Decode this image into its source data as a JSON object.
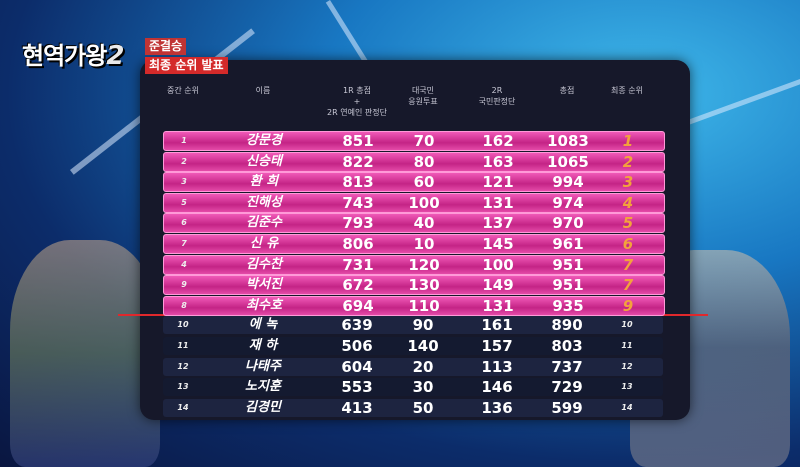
{
  "logo": {
    "title": "현역가왕",
    "number": "2"
  },
  "tags": [
    "준결승",
    "최종 순위 발표"
  ],
  "table": {
    "headers": [
      [
        "중간 순위"
      ],
      [
        "이름"
      ],
      [
        "1R 총점",
        "+",
        "2R 연예인 판정단"
      ],
      [
        "대국민",
        "응원투표"
      ],
      [
        "2R",
        "국민판정단"
      ],
      [
        "총점"
      ],
      [
        "최종 순위"
      ]
    ],
    "rows": [
      [
        1,
        "강문경",
        851,
        70,
        162,
        1083,
        1
      ],
      [
        2,
        "신승태",
        822,
        80,
        163,
        1065,
        2
      ],
      [
        3,
        "환 희",
        813,
        60,
        121,
        994,
        3
      ],
      [
        5,
        "진해성",
        743,
        100,
        131,
        974,
        4
      ],
      [
        6,
        "김준수",
        793,
        40,
        137,
        970,
        5
      ],
      [
        7,
        "신 유",
        806,
        10,
        145,
        961,
        6
      ],
      [
        4,
        "김수찬",
        731,
        120,
        100,
        951,
        7
      ],
      [
        9,
        "박서진",
        672,
        130,
        149,
        951,
        7
      ],
      [
        8,
        "최수호",
        694,
        110,
        131,
        935,
        9
      ],
      [
        10,
        "에 녹",
        639,
        90,
        161,
        890,
        10
      ],
      [
        11,
        "재 하",
        506,
        140,
        157,
        803,
        11
      ],
      [
        12,
        "나태주",
        604,
        20,
        113,
        737,
        12
      ],
      [
        13,
        "노지훈",
        553,
        30,
        146,
        729,
        13
      ],
      [
        14,
        "김경민",
        413,
        50,
        136,
        599,
        14
      ]
    ]
  }
}
